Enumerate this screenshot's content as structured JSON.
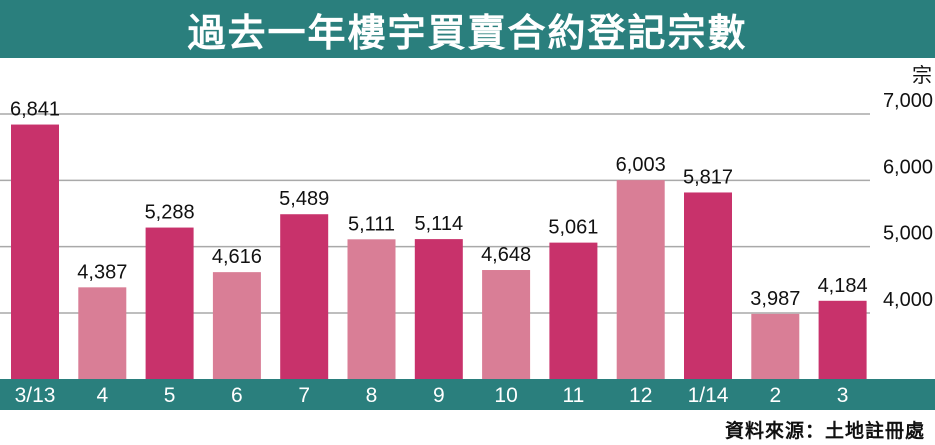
{
  "chart_data": {
    "type": "bar",
    "title": "過去一年樓宇買賣合約登記宗數",
    "ylabel": "宗",
    "categories": [
      "3/13",
      "4",
      "5",
      "6",
      "7",
      "8",
      "9",
      "10",
      "11",
      "12",
      "1/14",
      "2",
      "3"
    ],
    "values": [
      6841,
      4387,
      5288,
      4616,
      5489,
      5111,
      5114,
      4648,
      5061,
      6003,
      5817,
      3987,
      4184
    ],
    "value_labels": [
      "6,841",
      "4,387",
      "5,288",
      "4,616",
      "5,489",
      "5,111",
      "5,114",
      "4,648",
      "5,061",
      "6,003",
      "5,817",
      "3,987",
      "4,184"
    ],
    "yticks": [
      4000,
      5000,
      6000,
      7000
    ],
    "ytick_labels": [
      "4,000",
      "5,000",
      "6,000",
      "7,000"
    ],
    "ylim": [
      3000,
      7400
    ],
    "grid": true,
    "bar_colors": [
      "#c8326b",
      "#d97e96",
      "#c8326b",
      "#d97e96",
      "#c8326b",
      "#d97e96",
      "#c8326b",
      "#d97e96",
      "#c8326b",
      "#d97e96",
      "#c8326b",
      "#d97e96",
      "#c8326b"
    ],
    "axis_band_color": "#2a7f7d",
    "source": "資料來源：土地註冊處"
  }
}
